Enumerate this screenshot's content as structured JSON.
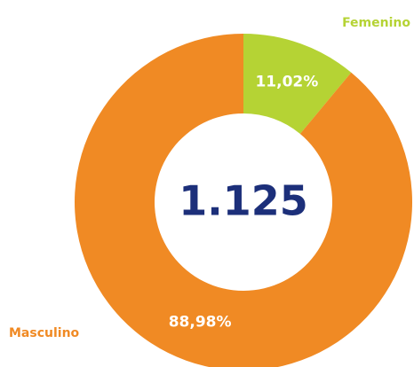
{
  "chart_data": {
    "type": "donut",
    "categories": [
      "Femenino",
      "Masculino"
    ],
    "values": [
      11.02,
      88.98
    ],
    "value_labels": [
      "11,02%",
      "88,98%"
    ],
    "colors": [
      "#b5d334",
      "#f08a24"
    ],
    "center_label": "1.125"
  }
}
